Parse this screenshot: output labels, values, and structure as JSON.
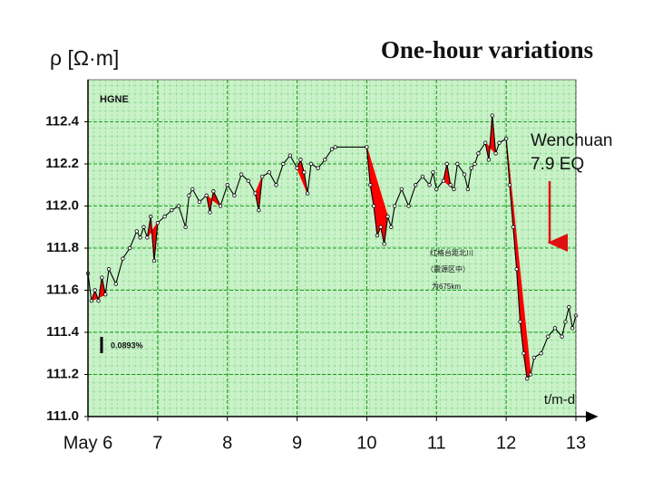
{
  "chart_data": {
    "type": "line",
    "title": "One-hour variations",
    "y_label": "ρ [Ω·m]",
    "x_label": "t/m-d",
    "station": "HGNE",
    "scale_note": "0.0893%",
    "annotation": [
      "Wenchuan",
      "7.9 EQ"
    ],
    "distance_note": [
      "红格台距北川",
      "（震源区中）",
      "为675km"
    ],
    "xlim": [
      6,
      13
    ],
    "ylim": [
      111.0,
      112.6
    ],
    "xticks": [
      {
        "value": 6,
        "label": "May 6"
      },
      7,
      8,
      9,
      10,
      11,
      12,
      13
    ],
    "yticks": [
      {
        "value": 111.0,
        "label": "111.0"
      },
      111.2,
      111.4,
      111.6,
      111.8,
      {
        "value": 112.0,
        "label": "112.0"
      },
      112.2,
      112.4
    ],
    "grid": true,
    "color": "#000000",
    "shade_color": "#ff0000",
    "shaded_spans": [
      [
        6.05,
        6.25
      ],
      [
        6.85,
        7.0
      ],
      [
        7.7,
        7.9
      ],
      [
        8.4,
        8.55
      ],
      [
        8.95,
        9.15
      ],
      [
        10.0,
        10.3
      ],
      [
        11.1,
        11.25
      ],
      [
        11.7,
        11.85
      ],
      [
        12.0,
        12.35
      ]
    ],
    "x": [
      6.0,
      6.05,
      6.1,
      6.15,
      6.2,
      6.25,
      6.3,
      6.4,
      6.5,
      6.6,
      6.7,
      6.75,
      6.8,
      6.85,
      6.9,
      6.95,
      7.0,
      7.1,
      7.2,
      7.3,
      7.4,
      7.45,
      7.5,
      7.6,
      7.7,
      7.75,
      7.8,
      7.9,
      8.0,
      8.1,
      8.2,
      8.3,
      8.4,
      8.45,
      8.5,
      8.6,
      8.7,
      8.8,
      8.9,
      9.0,
      9.05,
      9.1,
      9.15,
      9.2,
      9.3,
      9.4,
      9.5,
      9.55,
      10.0,
      10.05,
      10.1,
      10.15,
      10.2,
      10.25,
      10.3,
      10.35,
      10.4,
      10.5,
      10.6,
      10.7,
      10.8,
      10.9,
      10.95,
      11.0,
      11.1,
      11.15,
      11.2,
      11.25,
      11.3,
      11.4,
      11.45,
      11.5,
      11.55,
      11.6,
      11.7,
      11.75,
      11.8,
      11.85,
      11.9,
      12.0,
      12.05,
      12.1,
      12.15,
      12.2,
      12.25,
      12.3,
      12.35,
      12.4,
      12.5,
      12.6,
      12.7,
      12.8,
      12.85,
      12.9,
      12.95,
      13.0
    ],
    "values": [
      111.68,
      111.55,
      111.6,
      111.55,
      111.66,
      111.58,
      111.7,
      111.63,
      111.75,
      111.8,
      111.88,
      111.85,
      111.9,
      111.85,
      111.95,
      111.74,
      111.92,
      111.95,
      111.98,
      112.0,
      111.9,
      112.05,
      112.08,
      112.02,
      112.05,
      111.97,
      112.07,
      112.0,
      112.1,
      112.05,
      112.15,
      112.12,
      112.06,
      111.98,
      112.14,
      112.16,
      112.1,
      112.2,
      112.24,
      112.18,
      112.22,
      112.16,
      112.06,
      112.2,
      112.18,
      112.22,
      112.27,
      112.28,
      112.28,
      112.1,
      112.0,
      111.86,
      111.9,
      111.82,
      111.95,
      111.9,
      112.0,
      112.08,
      112.0,
      112.1,
      112.14,
      112.1,
      112.16,
      112.08,
      112.12,
      112.2,
      112.1,
      112.08,
      112.2,
      112.15,
      112.08,
      112.18,
      112.2,
      112.25,
      112.3,
      112.22,
      112.43,
      112.25,
      112.3,
      112.32,
      112.1,
      111.9,
      111.7,
      111.45,
      111.3,
      111.18,
      111.2,
      111.28,
      111.3,
      111.38,
      111.42,
      111.38,
      111.45,
      111.52,
      111.42,
      111.48
    ]
  }
}
